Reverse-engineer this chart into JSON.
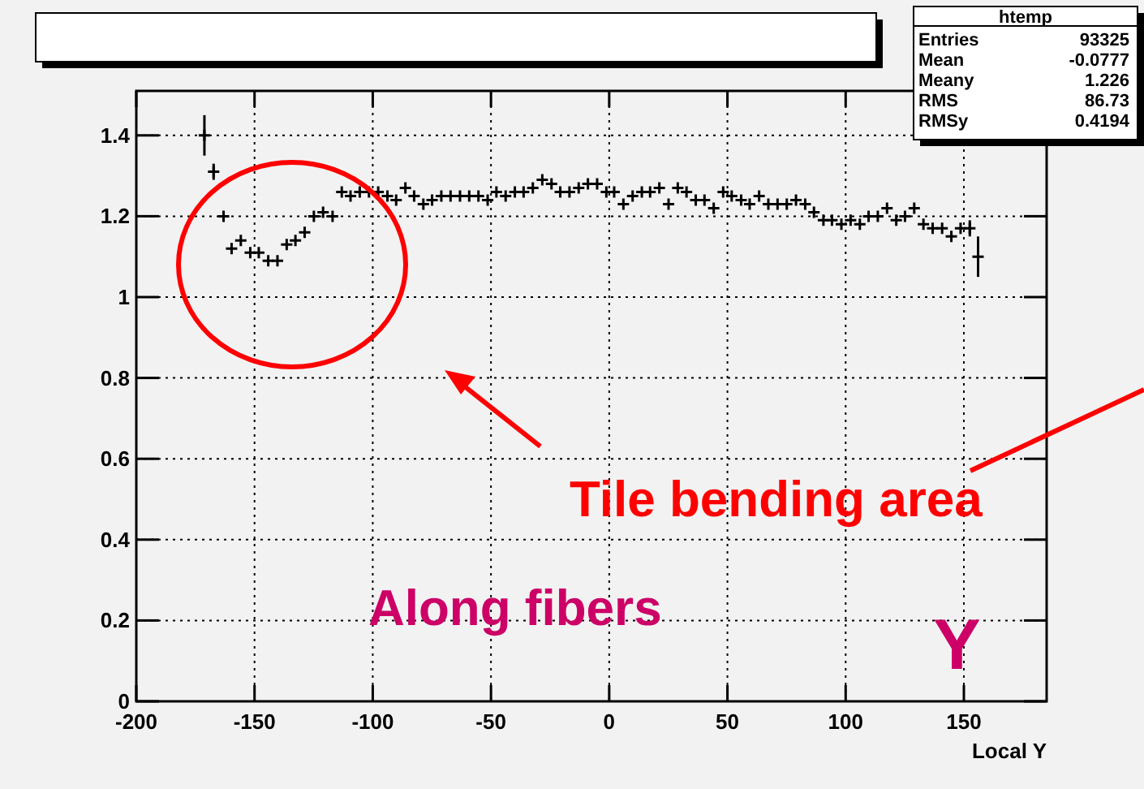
{
  "chart_data": {
    "type": "scatter",
    "xlabel": "Local Y",
    "x": [
      -171.2,
      -167.3,
      -163.1,
      -159.7,
      -155.8,
      -151.8,
      -148.2,
      -144.2,
      -140.3,
      -136.4,
      -132.7,
      -128.8,
      -124.9,
      -121,
      -117,
      -113.1,
      -109.4,
      -105.5,
      -101.6,
      -97.7,
      -93.8,
      -90.1,
      -86.2,
      -82.5,
      -78.6,
      -74.9,
      -71,
      -67.1,
      -63.1,
      -59.2,
      -55.3,
      -51.4,
      -47.7,
      -43.8,
      -39.9,
      -36.2,
      -32.3,
      -28.3,
      -24.4,
      -20.7,
      -16.8,
      -12.9,
      -9,
      -5.1,
      -1.2,
      2.1,
      6,
      9.9,
      13.8,
      17.3,
      21.2,
      25.1,
      29,
      32.7,
      36.6,
      40.3,
      44.2,
      48.2,
      51.8,
      55.8,
      59.4,
      63.4,
      67.3,
      71.2,
      75.1,
      79,
      82.9,
      86.6,
      90.6,
      94.2,
      98.2,
      102.1,
      106,
      109.7,
      113.6,
      117.5,
      121.4,
      125.1,
      129,
      132.9,
      136.8,
      140.8,
      144.7,
      148.6,
      152.5,
      156
    ],
    "values": [
      1.4,
      1.31,
      1.2,
      1.12,
      1.14,
      1.11,
      1.11,
      1.09,
      1.09,
      1.13,
      1.14,
      1.16,
      1.2,
      1.21,
      1.2,
      1.26,
      1.25,
      1.26,
      1.26,
      1.26,
      1.25,
      1.24,
      1.27,
      1.25,
      1.23,
      1.24,
      1.25,
      1.25,
      1.25,
      1.25,
      1.25,
      1.24,
      1.26,
      1.25,
      1.26,
      1.26,
      1.27,
      1.29,
      1.28,
      1.26,
      1.26,
      1.27,
      1.28,
      1.28,
      1.26,
      1.26,
      1.23,
      1.25,
      1.26,
      1.26,
      1.27,
      1.23,
      1.27,
      1.26,
      1.24,
      1.24,
      1.22,
      1.26,
      1.25,
      1.24,
      1.23,
      1.25,
      1.23,
      1.23,
      1.23,
      1.24,
      1.23,
      1.21,
      1.19,
      1.19,
      1.18,
      1.19,
      1.18,
      1.2,
      1.2,
      1.22,
      1.19,
      1.2,
      1.22,
      1.18,
      1.17,
      1.17,
      1.15,
      1.17,
      1.17,
      1.1
    ],
    "errors": [
      0.05,
      0.02,
      null,
      null,
      null,
      null,
      null,
      null,
      null,
      null,
      null,
      null,
      null,
      null,
      null,
      null,
      null,
      null,
      null,
      null,
      null,
      null,
      null,
      null,
      null,
      null,
      null,
      null,
      null,
      null,
      null,
      null,
      null,
      null,
      null,
      null,
      null,
      null,
      null,
      null,
      null,
      null,
      null,
      null,
      null,
      null,
      null,
      null,
      null,
      null,
      null,
      null,
      null,
      null,
      null,
      null,
      null,
      null,
      null,
      null,
      null,
      null,
      null,
      null,
      null,
      null,
      null,
      null,
      null,
      null,
      null,
      null,
      null,
      null,
      null,
      null,
      null,
      null,
      null,
      null,
      null,
      null,
      null,
      null,
      0.02,
      0.05
    ],
    "color": "#000000",
    "marker": "cross",
    "grid": true,
    "xlim": [
      -200,
      185
    ],
    "xticks": [
      -200,
      -150,
      -100,
      -50,
      0,
      50,
      100,
      150
    ],
    "ylim": [
      0,
      1.51
    ],
    "yticks": [
      0,
      0.2,
      0.4,
      0.6,
      0.8,
      1,
      1.2,
      1.4
    ],
    "annotations": [
      "htemp",
      "Entries",
      "93325",
      "Mean",
      "-0.0777",
      "Meany",
      "1.226",
      "RMS",
      "86.73",
      "RMSy",
      "0.4194",
      "Tile bending area",
      "Along fibers",
      "Y"
    ]
  }
}
